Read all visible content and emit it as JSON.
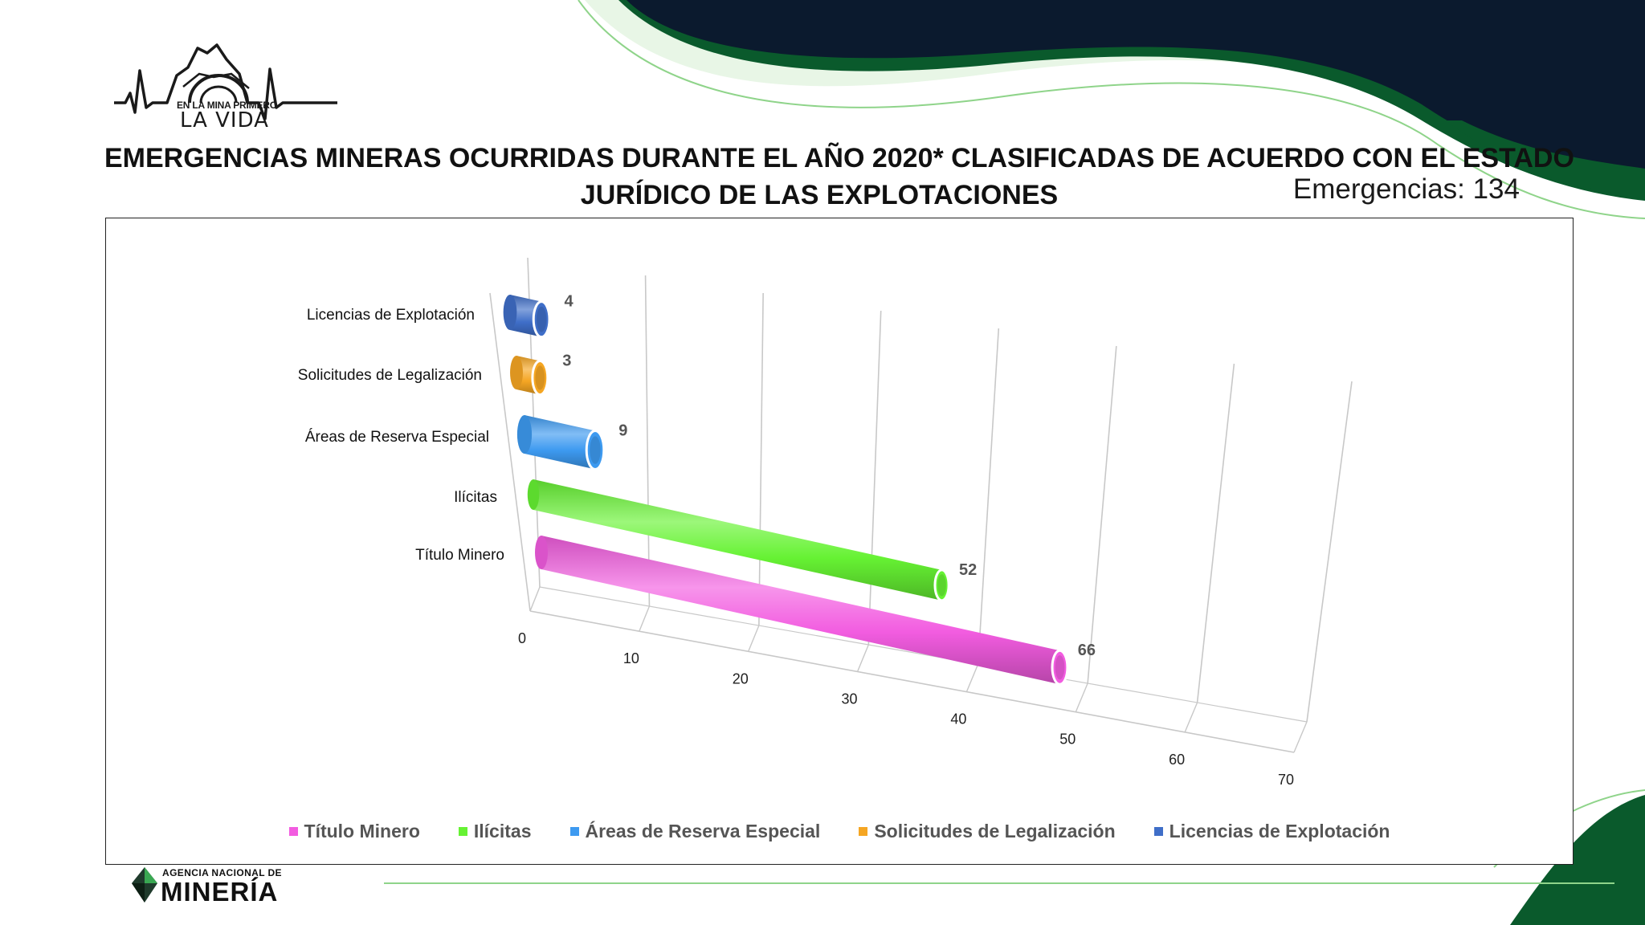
{
  "title_line1": "EMERGENCIAS MINERAS OCURRIDAS DURANTE EL AÑO 2020* CLASIFICADAS DE ACUERDO CON EL ESTADO",
  "title_line2": "JURÍDICO DE LAS EXPLOTACIONES",
  "emergencias": "Emergencias: 134",
  "logo_top": "EN LA MINA PRIMERO",
  "logo_main": "LA VIDA",
  "agency_line1": "AGENCIA NACIONAL DE",
  "agency_line2": "MINERÍA",
  "colors": {
    "dark_navy": "#0b1a2e",
    "dark_green": "#0a5a2c",
    "light_green_line": "#8fd48a"
  },
  "chart_data": {
    "type": "bar",
    "orientation": "horizontal-3d-cylinder",
    "categories": [
      "Licencias de Explotación",
      "Solicitudes de Legalización",
      "Áreas de Reserva Especial",
      "Ilícitas",
      "Título Minero"
    ],
    "values": [
      4,
      3,
      9,
      52,
      66
    ],
    "data_labels": [
      "4",
      "3",
      "9",
      "52",
      "66"
    ],
    "colors": [
      "#3f6ec8",
      "#f5a623",
      "#3d9af0",
      "#66f233",
      "#f25ce0"
    ],
    "xlim": [
      0,
      70
    ],
    "xticks": [
      "0",
      "10",
      "20",
      "30",
      "40",
      "50",
      "60",
      "70"
    ],
    "legend_position": "bottom",
    "legend": [
      "Título Minero",
      "Ilícitas",
      "Áreas de Reserva Especial",
      "Solicitudes de Legalización",
      "Licencias de Explotación"
    ],
    "legend_colors": [
      "#f25ce0",
      "#66f233",
      "#3d9af0",
      "#f5a623",
      "#3f6ec8"
    ],
    "grid": true
  }
}
